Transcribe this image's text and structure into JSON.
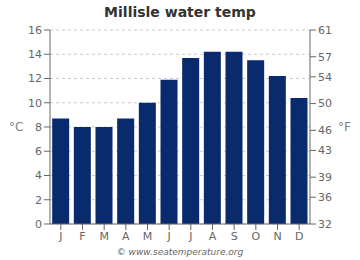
{
  "chart_data": {
    "type": "bar",
    "title": "Millisle water temp",
    "categories": [
      "J",
      "F",
      "M",
      "A",
      "M",
      "J",
      "J",
      "A",
      "S",
      "O",
      "N",
      "D"
    ],
    "values": [
      8.7,
      8.0,
      8.0,
      8.7,
      10.0,
      11.9,
      13.7,
      14.2,
      14.2,
      13.5,
      12.2,
      10.4
    ],
    "color": "#0a2a6e",
    "ylabel": "°C",
    "y2label": "°F",
    "ylim": [
      0,
      16
    ],
    "yticks": [
      0,
      2,
      4,
      6,
      8,
      10,
      12,
      14,
      16
    ],
    "y2lim": [
      32,
      61
    ],
    "y2ticks": [
      32,
      36,
      39,
      43,
      46,
      50,
      54,
      57,
      61
    ],
    "grid": true,
    "annotations": [
      "© www.seatemperature.org"
    ]
  }
}
